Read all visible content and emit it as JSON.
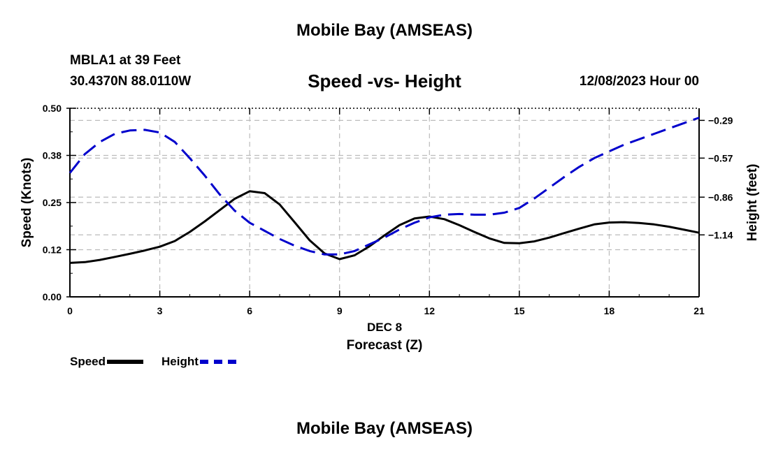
{
  "header": {
    "main_title": "Mobile Bay (AMSEAS)",
    "station": "MBLA1 at 39 Feet",
    "coords": "30.4370N  88.0110W",
    "chart_title": "Speed -vs- Height",
    "date": "12/08/2023 Hour 00",
    "footer_title": "Mobile Bay (AMSEAS)"
  },
  "legend": {
    "speed_label": "Speed",
    "height_label": "Height"
  },
  "colors": {
    "speed": "#000000",
    "height": "#0000cc",
    "grid": "#bbbbbb"
  },
  "chart_data": {
    "type": "line",
    "title": "Speed -vs- Height",
    "xlabel": "Forecast (Z)",
    "xsublabel": "DEC 8",
    "ylabel": "Speed (Knots)",
    "y2label": "Height (feet)",
    "xlim": [
      0,
      21
    ],
    "ylim": [
      0,
      0.5
    ],
    "y2lim": [
      -1.6,
      -0.2
    ],
    "x_ticks": [
      0,
      3,
      6,
      9,
      12,
      15,
      18,
      21
    ],
    "x_tick_labels": [
      "0",
      "3",
      "6",
      "9",
      "12",
      "15",
      "18",
      "21"
    ],
    "y_ticks": [
      0,
      0.125,
      0.25,
      0.375,
      0.5
    ],
    "y_tick_labels": [
      "0.00",
      "0.12",
      "0.25",
      "0.38",
      "0.50"
    ],
    "y2_ticks": [
      -1.14,
      -0.86,
      -0.57,
      -0.29
    ],
    "y2_tick_labels": [
      "−1.14",
      "−0.86",
      "−0.57",
      "−0.29"
    ],
    "grid": true,
    "series": [
      {
        "name": "Speed",
        "axis": "left",
        "style": "solid",
        "x": [
          0,
          0.5,
          1,
          1.5,
          2,
          2.5,
          3,
          3.5,
          4,
          4.5,
          5,
          5.5,
          6,
          6.5,
          7,
          7.5,
          8,
          8.5,
          9,
          9.5,
          10,
          10.5,
          11,
          11.5,
          12,
          12.5,
          13,
          13.5,
          14,
          14.5,
          15,
          15.5,
          16,
          16.5,
          17,
          17.5,
          18,
          18.5,
          19,
          19.5,
          20,
          20.5,
          21
        ],
        "values": [
          0.09,
          0.092,
          0.098,
          0.106,
          0.114,
          0.123,
          0.133,
          0.148,
          0.172,
          0.2,
          0.23,
          0.26,
          0.28,
          0.275,
          0.245,
          0.198,
          0.15,
          0.115,
          0.1,
          0.11,
          0.134,
          0.163,
          0.19,
          0.208,
          0.213,
          0.206,
          0.19,
          0.172,
          0.155,
          0.143,
          0.142,
          0.147,
          0.157,
          0.169,
          0.181,
          0.192,
          0.197,
          0.198,
          0.196,
          0.192,
          0.186,
          0.178,
          0.17
        ]
      },
      {
        "name": "Height",
        "axis": "right",
        "style": "dashed",
        "x": [
          0,
          0.5,
          1,
          1.5,
          2,
          2.5,
          3,
          3.5,
          4,
          4.5,
          5,
          5.5,
          6,
          6.5,
          7,
          7.5,
          8,
          8.5,
          9,
          9.5,
          10,
          10.5,
          11,
          11.5,
          12,
          12.5,
          13,
          13.5,
          14,
          14.5,
          15,
          15.5,
          16,
          16.5,
          17,
          17.5,
          18,
          18.5,
          19,
          19.5,
          20,
          20.5,
          21
        ],
        "values": [
          -0.68,
          -0.54,
          -0.45,
          -0.39,
          -0.365,
          -0.36,
          -0.38,
          -0.45,
          -0.57,
          -0.7,
          -0.84,
          -0.96,
          -1.05,
          -1.11,
          -1.17,
          -1.22,
          -1.26,
          -1.285,
          -1.285,
          -1.26,
          -1.21,
          -1.16,
          -1.1,
          -1.05,
          -1.01,
          -0.99,
          -0.985,
          -0.99,
          -0.99,
          -0.975,
          -0.94,
          -0.87,
          -0.79,
          -0.71,
          -0.635,
          -0.57,
          -0.52,
          -0.47,
          -0.43,
          -0.39,
          -0.35,
          -0.31,
          -0.27
        ]
      }
    ]
  }
}
